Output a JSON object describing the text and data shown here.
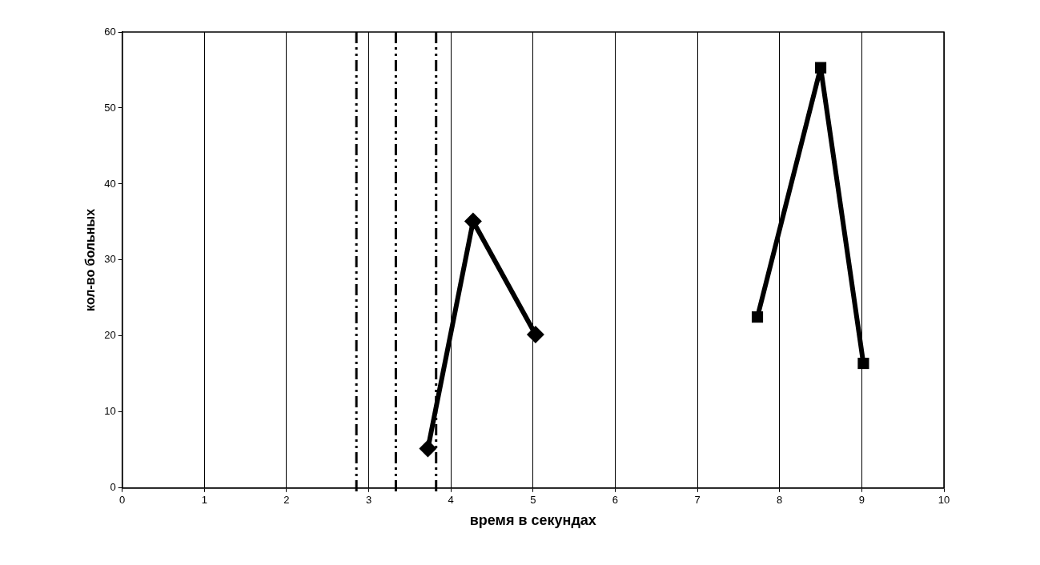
{
  "chart_data": {
    "type": "line",
    "xlabel": "время в секундах",
    "ylabel": "кол-во больных",
    "xlim": [
      0,
      10
    ],
    "xticks": [
      0,
      1,
      2,
      3,
      4,
      5,
      6,
      7,
      8,
      9,
      10
    ],
    "ylim": [
      0,
      60
    ],
    "yticks": [
      0,
      10,
      20,
      30,
      40,
      50,
      60
    ],
    "grid": "x",
    "legend": false,
    "line_style": "solid",
    "series": [
      {
        "color": "#000000",
        "marker": "diamond",
        "x": [
          3.72,
          4.27,
          5.03
        ],
        "values": [
          5.2,
          35.1,
          20.2
        ]
      },
      {
        "color": "#000000",
        "marker": "square",
        "x": [
          7.73,
          8.5,
          9.02
        ],
        "values": [
          22.5,
          55.3,
          16.4
        ]
      }
    ],
    "ref_lines": [
      {
        "axis": "x",
        "value": 2.85,
        "color": "#000000",
        "line_style": "dashed"
      },
      {
        "axis": "x",
        "value": 3.33,
        "color": "#000000",
        "line_style": "dashed"
      },
      {
        "axis": "x",
        "value": 3.82,
        "color": "#000000",
        "line_style": "dashed"
      }
    ]
  }
}
